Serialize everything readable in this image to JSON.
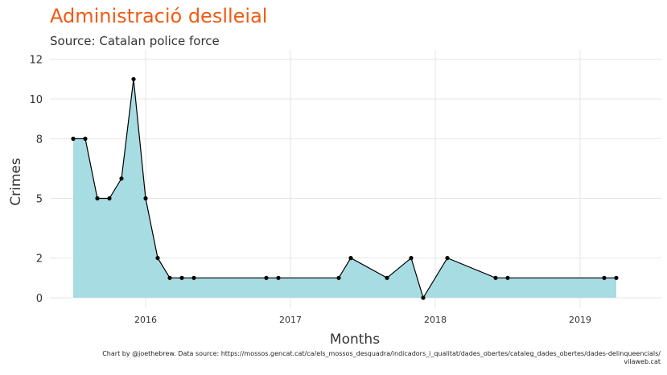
{
  "title": "Administració deslleial",
  "subtitle": "Source: Catalan police force",
  "caption_line1": "Chart by @joethebrew. Data source: https://mossos.gencat.cat/ca/els_mossos_desquadra/indicadors_i_qualitat/dades_obertes/cataleg_dades_obertes/dades-delinqueencials/",
  "caption_line2": "vilaweb.cat",
  "colors": {
    "title": "#f05a14",
    "area": "#a7dce3",
    "line": "#000000",
    "grid": "#e6e6e6"
  },
  "chart_data": {
    "type": "area",
    "title": "Administració deslleial",
    "subtitle": "Source: Catalan police force",
    "xlabel": "Months",
    "ylabel": "Crimes",
    "ylim": [
      0,
      12.5
    ],
    "yticks": [
      0,
      2,
      5,
      8,
      10,
      12
    ],
    "ytick_labels": [
      "0",
      "2",
      "5",
      "8",
      "10",
      "12"
    ],
    "xticks": [
      "2016",
      "2017",
      "2018",
      "2019"
    ],
    "grid": true,
    "series": [
      {
        "x": [
          "2015-07",
          "2015-08",
          "2015-09",
          "2015-10",
          "2015-11",
          "2015-12",
          "2016-01",
          "2016-02",
          "2016-03",
          "2016-04",
          "2016-05",
          "2016-11",
          "2016-12",
          "2017-05",
          "2017-06",
          "2017-09",
          "2017-11",
          "2017-12",
          "2018-02",
          "2018-06",
          "2018-07",
          "2019-03",
          "2019-04"
        ],
        "values": [
          8,
          8,
          5,
          5,
          6,
          11,
          5,
          2,
          1,
          1,
          1,
          1,
          1,
          1,
          2,
          1,
          2,
          0,
          2,
          1,
          1,
          1,
          1
        ]
      }
    ]
  }
}
